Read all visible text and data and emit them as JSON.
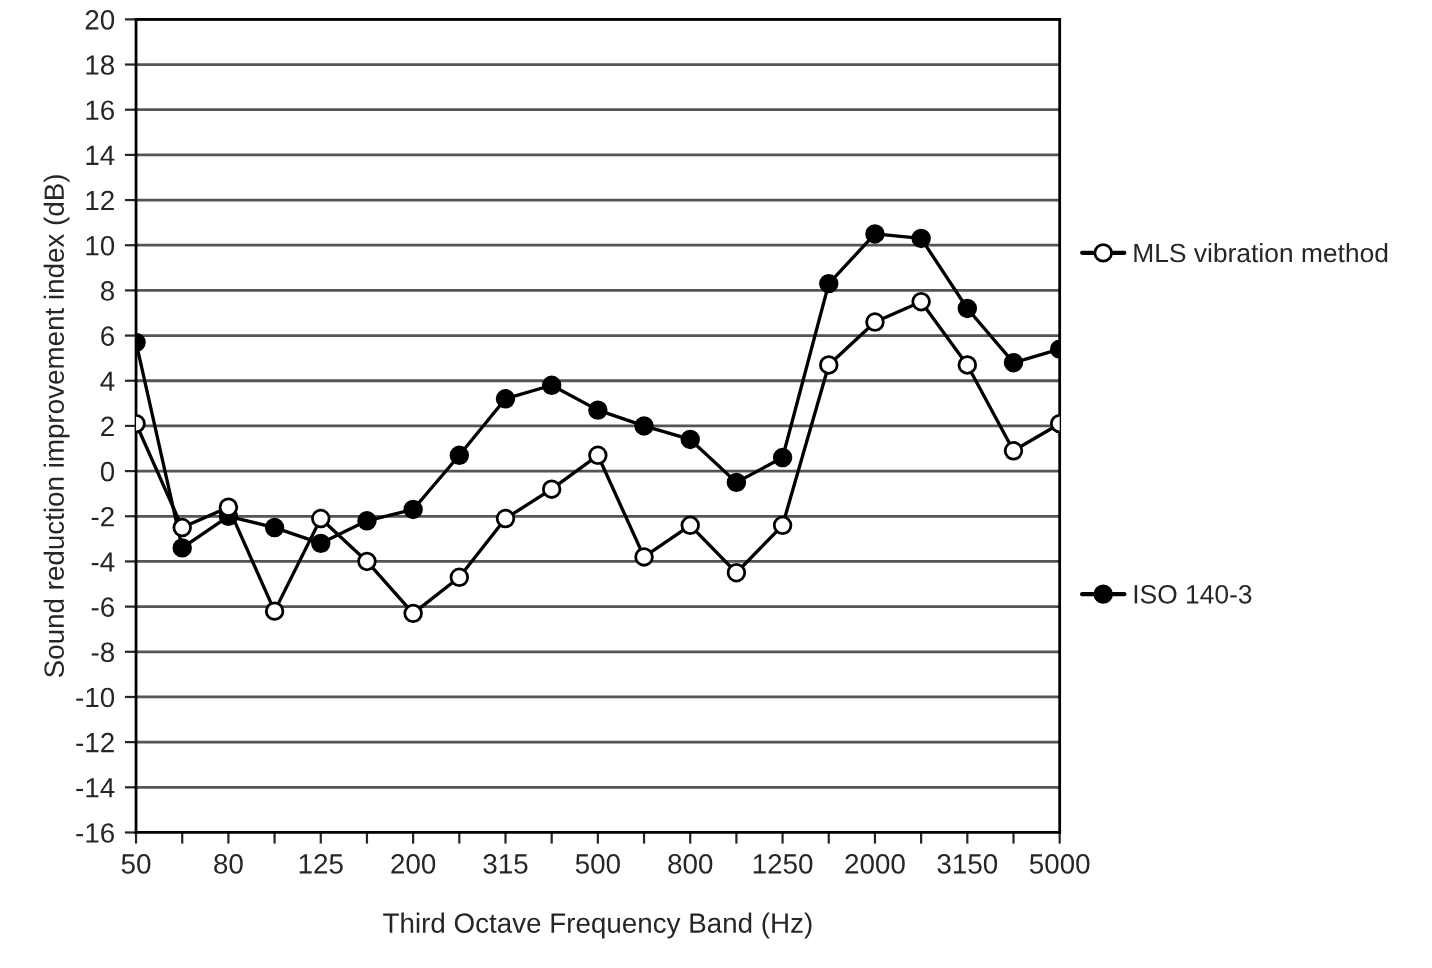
{
  "chart_data": {
    "type": "line",
    "xlabel": "Third Octave Frequency Band (Hz)",
    "ylabel": "Sound reduction improvement index (dB)",
    "categories": [
      "50",
      null,
      "80",
      null,
      "125",
      null,
      "200",
      null,
      "315",
      null,
      "500",
      null,
      "800",
      null,
      "1250",
      null,
      "2000",
      null,
      "3150",
      null,
      "5000"
    ],
    "series": [
      {
        "name": "MLS vibration method",
        "color": "#000000",
        "marker": "circle",
        "values": [
          2.1,
          -2.5,
          -1.6,
          -6.2,
          -2.1,
          -4.0,
          -6.3,
          -4.7,
          -2.1,
          -0.8,
          0.7,
          -3.8,
          -2.4,
          -4.5,
          -2.4,
          4.7,
          6.6,
          7.5,
          4.7,
          0.9,
          2.1
        ]
      },
      {
        "name": "ISO 140-3",
        "color": "#000000",
        "marker": "circle",
        "values": [
          5.7,
          -3.4,
          -2.0,
          -2.5,
          -3.2,
          -2.2,
          -1.7,
          0.7,
          3.2,
          3.8,
          2.7,
          2.0,
          1.4,
          -0.5,
          0.6,
          8.3,
          10.5,
          10.3,
          7.2,
          4.8,
          5.4
        ]
      }
    ],
    "ylim": [
      -16,
      20
    ],
    "yticks": [
      -16,
      -14,
      -12,
      -10,
      -8,
      -6,
      -4,
      -2,
      0,
      2,
      4,
      6,
      8,
      10,
      12,
      14,
      16,
      18,
      20
    ],
    "grid": "y",
    "legend": "right",
    "line_style": "solid"
  }
}
